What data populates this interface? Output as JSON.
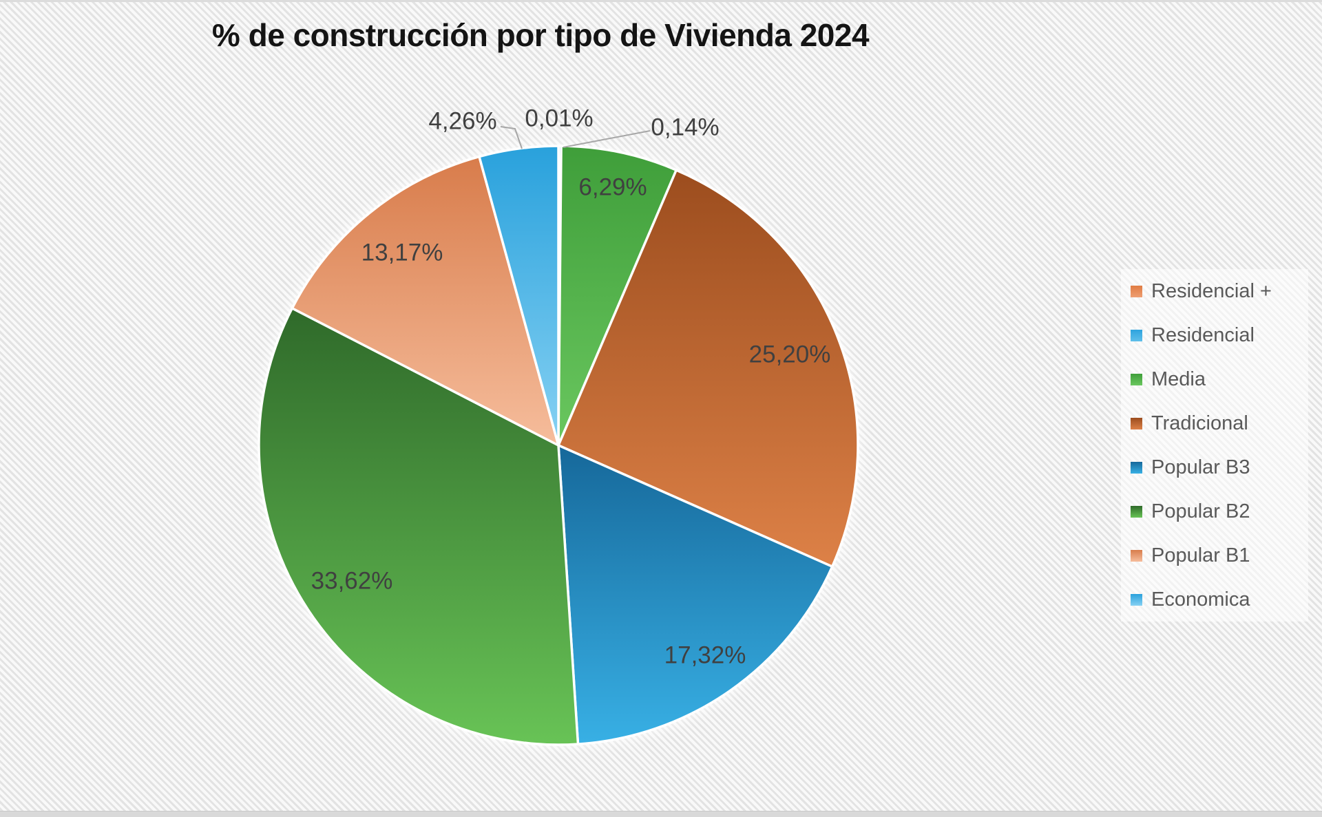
{
  "title": "% de construcción por tipo de Vivienda 2024",
  "chart_data": {
    "type": "pie",
    "title": "% de construcción por tipo de Vivienda 2024",
    "start_angle_deg": 0,
    "direction": "clockwise",
    "legend_position": "right",
    "grid": false,
    "label_color": "#404040",
    "legend_text_color": "#595959",
    "slice_border_color": "#ffffff",
    "series": [
      {
        "name": "Residencial +",
        "value": 0.01,
        "label": "0,01%",
        "label_placement": "outside",
        "color_top": "#e07c43",
        "color_bottom": "#ee9e72"
      },
      {
        "name": "Residencial",
        "value": 0.14,
        "label": "0,14%",
        "label_placement": "outside",
        "color_top": "#2ea3de",
        "color_bottom": "#5fbfea"
      },
      {
        "name": "Media",
        "value": 6.29,
        "label": "6,29%",
        "label_placement": "inside",
        "color_top": "#3f9e3a",
        "color_bottom": "#6ac75f"
      },
      {
        "name": "Tradicional",
        "value": 25.2,
        "label": "25,20%",
        "label_placement": "inside",
        "color_top": "#9c4d1e",
        "color_bottom": "#dd8147"
      },
      {
        "name": "Popular B3",
        "value": 17.32,
        "label": "17,32%",
        "label_placement": "inside",
        "color_top": "#16689a",
        "color_bottom": "#38b0e5"
      },
      {
        "name": "Popular B2",
        "value": 33.62,
        "label": "33,62%",
        "label_placement": "inside",
        "color_top": "#2f6a2a",
        "color_bottom": "#68c356"
      },
      {
        "name": "Popular B1",
        "value": 13.17,
        "label": "13,17%",
        "label_placement": "inside",
        "color_top": "#d87c4b",
        "color_bottom": "#f6bd9c"
      },
      {
        "name": "Economica",
        "value": 4.26,
        "label": "4,26%",
        "label_placement": "outside",
        "color_top": "#29a1dc",
        "color_bottom": "#86d1f3"
      }
    ]
  }
}
